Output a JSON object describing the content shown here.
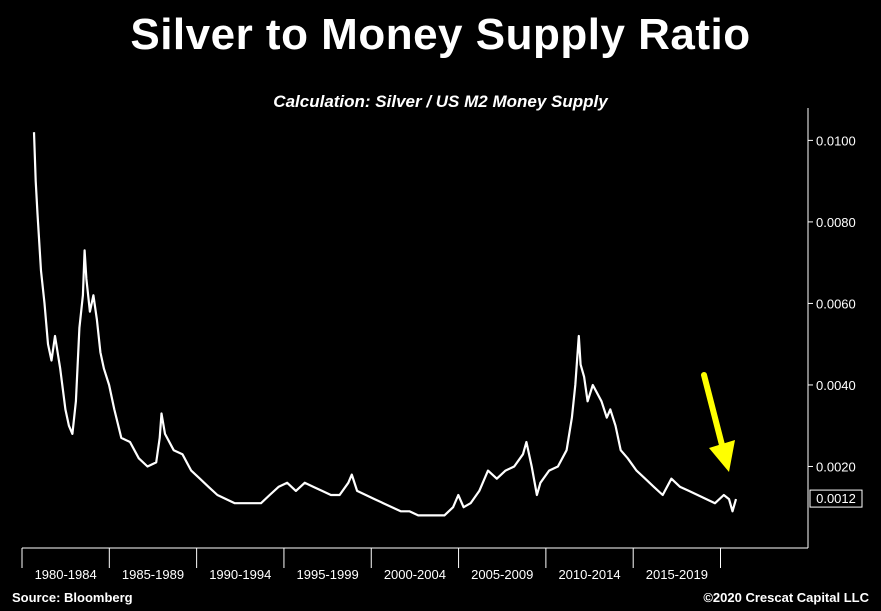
{
  "title": "Silver to Money Supply Ratio",
  "subtitle": "Calculation: Silver / US M2 Money Supply",
  "footer": {
    "source": "Source: Bloomberg",
    "copyright": "©2020 Crescat Capital LLC"
  },
  "colors": {
    "background": "#000000",
    "line": "#ffffff",
    "arrow": "#ffff00"
  },
  "chart_data": {
    "type": "line",
    "title": "Silver to Money Supply Ratio",
    "subtitle": "Calculation: Silver / US M2 Money Supply",
    "xlabel": "",
    "ylabel": "",
    "x_range": [
      1980.0,
      2020.2
    ],
    "ylim": [
      0.0,
      0.0105
    ],
    "y_axis_position": "right",
    "grid": false,
    "categories": [
      "1980-1984",
      "1985-1989",
      "1990-1994",
      "1995-1999",
      "2000-2004",
      "2005-2009",
      "2010-2014",
      "2015-2019"
    ],
    "y_ticks": [
      "0.0100",
      "0.0080",
      "0.0060",
      "0.0040",
      "0.0020"
    ],
    "last_value_label": "0.0012",
    "series": [
      {
        "values": [
          [
            1980.0,
            0.0102
          ],
          [
            1980.1,
            0.009
          ],
          [
            1980.2,
            0.0082
          ],
          [
            1980.4,
            0.0068
          ],
          [
            1980.6,
            0.006
          ],
          [
            1980.8,
            0.005
          ],
          [
            1981.0,
            0.0046
          ],
          [
            1981.2,
            0.0052
          ],
          [
            1981.5,
            0.0044
          ],
          [
            1981.8,
            0.0034
          ],
          [
            1982.0,
            0.003
          ],
          [
            1982.2,
            0.0028
          ],
          [
            1982.4,
            0.0036
          ],
          [
            1982.6,
            0.0054
          ],
          [
            1982.8,
            0.0062
          ],
          [
            1982.9,
            0.0073
          ],
          [
            1983.0,
            0.0066
          ],
          [
            1983.2,
            0.0058
          ],
          [
            1983.4,
            0.0062
          ],
          [
            1983.6,
            0.0056
          ],
          [
            1983.8,
            0.0048
          ],
          [
            1984.0,
            0.0044
          ],
          [
            1984.3,
            0.004
          ],
          [
            1984.6,
            0.0034
          ],
          [
            1985.0,
            0.0027
          ],
          [
            1985.5,
            0.0026
          ],
          [
            1986.0,
            0.0022
          ],
          [
            1986.5,
            0.002
          ],
          [
            1987.0,
            0.0021
          ],
          [
            1987.2,
            0.0027
          ],
          [
            1987.3,
            0.0033
          ],
          [
            1987.5,
            0.0028
          ],
          [
            1988.0,
            0.0024
          ],
          [
            1988.5,
            0.0023
          ],
          [
            1989.0,
            0.0019
          ],
          [
            1989.5,
            0.0017
          ],
          [
            1990.0,
            0.0015
          ],
          [
            1990.5,
            0.0013
          ],
          [
            1991.0,
            0.0012
          ],
          [
            1991.5,
            0.0011
          ],
          [
            1992.0,
            0.0011
          ],
          [
            1992.5,
            0.0011
          ],
          [
            1993.0,
            0.0011
          ],
          [
            1993.5,
            0.0013
          ],
          [
            1994.0,
            0.0015
          ],
          [
            1994.5,
            0.0016
          ],
          [
            1995.0,
            0.0014
          ],
          [
            1995.5,
            0.0016
          ],
          [
            1996.0,
            0.0015
          ],
          [
            1996.5,
            0.0014
          ],
          [
            1997.0,
            0.0013
          ],
          [
            1997.5,
            0.0013
          ],
          [
            1998.0,
            0.0016
          ],
          [
            1998.2,
            0.0018
          ],
          [
            1998.5,
            0.0014
          ],
          [
            1999.0,
            0.0013
          ],
          [
            1999.5,
            0.0012
          ],
          [
            2000.0,
            0.0011
          ],
          [
            2000.5,
            0.001
          ],
          [
            2001.0,
            0.0009
          ],
          [
            2001.5,
            0.0009
          ],
          [
            2002.0,
            0.0008
          ],
          [
            2002.5,
            0.0008
          ],
          [
            2003.0,
            0.0008
          ],
          [
            2003.5,
            0.0008
          ],
          [
            2004.0,
            0.001
          ],
          [
            2004.3,
            0.0013
          ],
          [
            2004.6,
            0.001
          ],
          [
            2005.0,
            0.0011
          ],
          [
            2005.5,
            0.0014
          ],
          [
            2006.0,
            0.0019
          ],
          [
            2006.5,
            0.0017
          ],
          [
            2007.0,
            0.0019
          ],
          [
            2007.5,
            0.002
          ],
          [
            2008.0,
            0.0023
          ],
          [
            2008.2,
            0.0026
          ],
          [
            2008.5,
            0.002
          ],
          [
            2008.8,
            0.0013
          ],
          [
            2009.0,
            0.0016
          ],
          [
            2009.5,
            0.0019
          ],
          [
            2010.0,
            0.002
          ],
          [
            2010.5,
            0.0024
          ],
          [
            2010.8,
            0.0032
          ],
          [
            2011.0,
            0.004
          ],
          [
            2011.2,
            0.0052
          ],
          [
            2011.3,
            0.0045
          ],
          [
            2011.5,
            0.0042
          ],
          [
            2011.7,
            0.0036
          ],
          [
            2012.0,
            0.004
          ],
          [
            2012.5,
            0.0036
          ],
          [
            2012.8,
            0.0032
          ],
          [
            2013.0,
            0.0034
          ],
          [
            2013.3,
            0.003
          ],
          [
            2013.6,
            0.0024
          ],
          [
            2014.0,
            0.0022
          ],
          [
            2014.5,
            0.0019
          ],
          [
            2015.0,
            0.0017
          ],
          [
            2015.5,
            0.0015
          ],
          [
            2016.0,
            0.0013
          ],
          [
            2016.5,
            0.0017
          ],
          [
            2017.0,
            0.0015
          ],
          [
            2017.5,
            0.0014
          ],
          [
            2018.0,
            0.0013
          ],
          [
            2018.5,
            0.0012
          ],
          [
            2019.0,
            0.0011
          ],
          [
            2019.5,
            0.0013
          ],
          [
            2019.8,
            0.0012
          ],
          [
            2020.0,
            0.0009
          ],
          [
            2020.2,
            0.0012
          ]
        ]
      }
    ]
  }
}
